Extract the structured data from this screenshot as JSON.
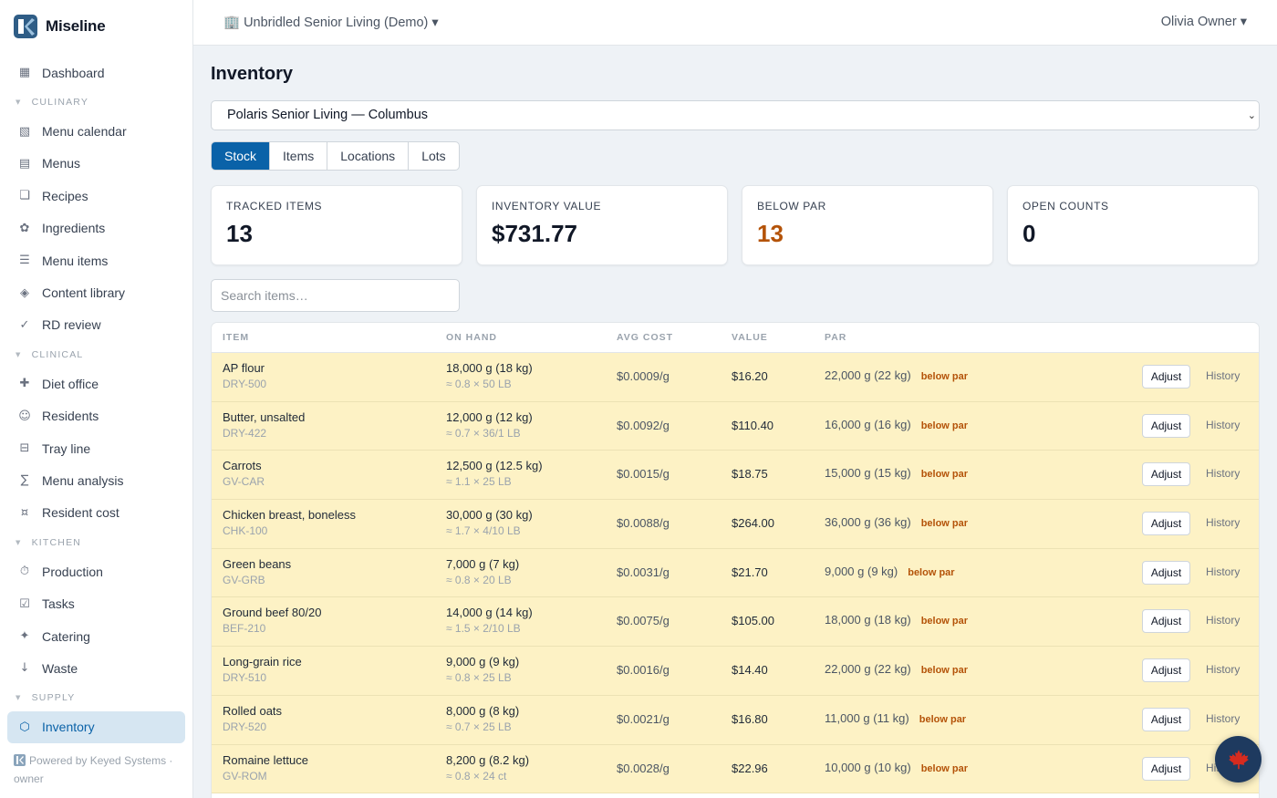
{
  "brand": {
    "name": "Miseline"
  },
  "topbar": {
    "org": "🏢 Unbridled Senior Living (Demo) ▾",
    "user": "Olivia Owner ▾"
  },
  "sidebar": {
    "dashboard": {
      "icon": "▦",
      "label": "Dashboard"
    },
    "sections": [
      {
        "title": "CULINARY",
        "items": [
          {
            "icon": "▧",
            "label": "Menu calendar"
          },
          {
            "icon": "▤",
            "label": "Menus"
          },
          {
            "icon": "❏",
            "label": "Recipes"
          },
          {
            "icon": "✿",
            "label": "Ingredients"
          },
          {
            "icon": "☰",
            "label": "Menu items"
          },
          {
            "icon": "◈",
            "label": "Content library"
          },
          {
            "icon": "✓",
            "label": "RD review"
          }
        ]
      },
      {
        "title": "CLINICAL",
        "items": [
          {
            "icon": "✚",
            "label": "Diet office"
          },
          {
            "icon": "☺",
            "label": "Residents"
          },
          {
            "icon": "⊟",
            "label": "Tray line"
          },
          {
            "icon": "∑",
            "label": "Menu analysis"
          },
          {
            "icon": "¤",
            "label": "Resident cost"
          }
        ]
      },
      {
        "title": "KITCHEN",
        "items": [
          {
            "icon": "⏱",
            "label": "Production"
          },
          {
            "icon": "☑",
            "label": "Tasks"
          },
          {
            "icon": "✦",
            "label": "Catering"
          },
          {
            "icon": "↓",
            "label": "Waste"
          }
        ]
      },
      {
        "title": "SUPPLY",
        "items": [
          {
            "icon": "⬡",
            "label": "Inventory"
          }
        ]
      }
    ],
    "powered": "Powered by Keyed Systems ·",
    "role": "owner"
  },
  "page": {
    "title": "Inventory",
    "location": "Polaris Senior Living — Columbus",
    "tabs": [
      "Stock",
      "Items",
      "Locations",
      "Lots"
    ],
    "stats": [
      {
        "label": "TRACKED ITEMS",
        "value": "13"
      },
      {
        "label": "INVENTORY VALUE",
        "value": "$731.77"
      },
      {
        "label": "BELOW PAR",
        "value": "13"
      },
      {
        "label": "OPEN COUNTS",
        "value": "0"
      }
    ],
    "search_placeholder": "Search items…",
    "columns": [
      "ITEM",
      "ON HAND",
      "AVG COST",
      "VALUE",
      "PAR"
    ],
    "below_label": "below par",
    "adjust_label": "Adjust",
    "history_label": "History",
    "rows": [
      {
        "name": "AP flour",
        "sku": "DRY-500",
        "on_hand": "18,000 g (18 kg)",
        "conv": "≈ 0.8 × 50 LB",
        "cost": "$0.0009/g",
        "value": "$16.20",
        "par": "22,000 g (22 kg)"
      },
      {
        "name": "Butter, unsalted",
        "sku": "DRY-422",
        "on_hand": "12,000 g (12 kg)",
        "conv": "≈ 0.7 × 36/1 LB",
        "cost": "$0.0092/g",
        "value": "$110.40",
        "par": "16,000 g (16 kg)"
      },
      {
        "name": "Carrots",
        "sku": "GV-CAR",
        "on_hand": "12,500 g (12.5 kg)",
        "conv": "≈ 1.1 × 25 LB",
        "cost": "$0.0015/g",
        "value": "$18.75",
        "par": "15,000 g (15 kg)"
      },
      {
        "name": "Chicken breast, boneless",
        "sku": "CHK-100",
        "on_hand": "30,000 g (30 kg)",
        "conv": "≈ 1.7 × 4/10 LB",
        "cost": "$0.0088/g",
        "value": "$264.00",
        "par": "36,000 g (36 kg)"
      },
      {
        "name": "Green beans",
        "sku": "GV-GRB",
        "on_hand": "7,000 g (7 kg)",
        "conv": "≈ 0.8 × 20 LB",
        "cost": "$0.0031/g",
        "value": "$21.70",
        "par": "9,000 g (9 kg)"
      },
      {
        "name": "Ground beef 80/20",
        "sku": "BEF-210",
        "on_hand": "14,000 g (14 kg)",
        "conv": "≈ 1.5 × 2/10 LB",
        "cost": "$0.0075/g",
        "value": "$105.00",
        "par": "18,000 g (18 kg)"
      },
      {
        "name": "Long-grain rice",
        "sku": "DRY-510",
        "on_hand": "9,000 g (9 kg)",
        "conv": "≈ 0.8 × 25 LB",
        "cost": "$0.0016/g",
        "value": "$14.40",
        "par": "22,000 g (22 kg)"
      },
      {
        "name": "Rolled oats",
        "sku": "DRY-520",
        "on_hand": "8,000 g (8 kg)",
        "conv": "≈ 0.7 × 25 LB",
        "cost": "$0.0021/g",
        "value": "$16.80",
        "par": "11,000 g (11 kg)"
      },
      {
        "name": "Romaine lettuce",
        "sku": "GV-ROM",
        "on_hand": "8,200 g (8.2 kg)",
        "conv": "≈ 0.8 × 24 ct",
        "cost": "$0.0028/g",
        "value": "$22.96",
        "par": "10,000 g (10 kg)"
      }
    ]
  },
  "colors": {
    "accent": "#0a62a8",
    "warning": "#b45309",
    "row_highlight": "#fdf2c5"
  },
  "fab": {
    "icon": "maple-leaf-icon"
  }
}
